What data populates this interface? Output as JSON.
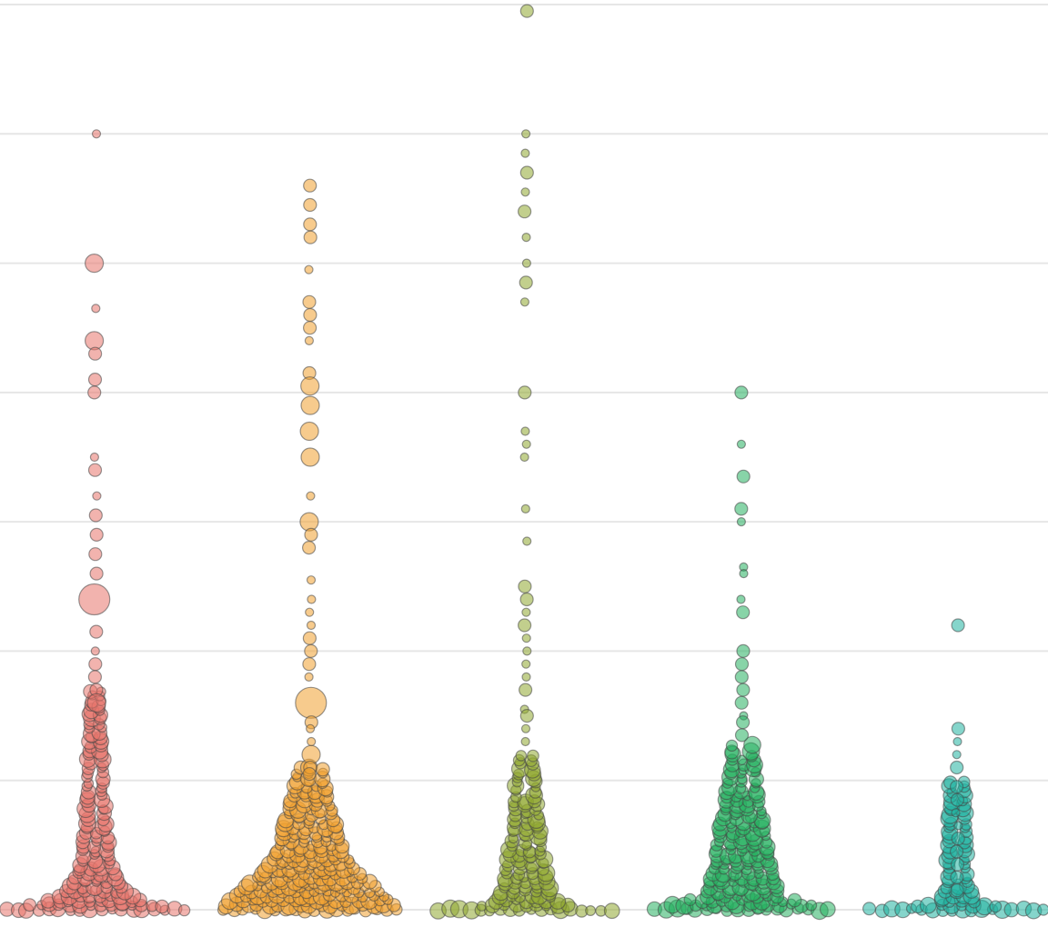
{
  "chart_data": {
    "type": "scatter",
    "subtype": "beeswarm",
    "title": "",
    "xlabel": "",
    "ylabel": "",
    "ylim": [
      0,
      7
    ],
    "grid": true,
    "gridlines": [
      0,
      1,
      2,
      3,
      4,
      5,
      6,
      7
    ],
    "legend": "none",
    "dot_opacity": 0.55,
    "series": [
      {
        "key": "s1",
        "color": "#e8746c",
        "outliers": [
          {
            "y": 6.0,
            "size": 1
          },
          {
            "y": 5.0,
            "size": 3
          },
          {
            "y": 4.65,
            "size": 1
          },
          {
            "y": 4.4,
            "size": 3
          },
          {
            "y": 4.3,
            "size": 2
          },
          {
            "y": 4.1,
            "size": 2
          },
          {
            "y": 4.0,
            "size": 2
          },
          {
            "y": 3.5,
            "size": 1
          },
          {
            "y": 3.4,
            "size": 2
          },
          {
            "y": 3.2,
            "size": 1
          },
          {
            "y": 3.05,
            "size": 2
          },
          {
            "y": 2.9,
            "size": 2
          },
          {
            "y": 2.75,
            "size": 2
          },
          {
            "y": 2.6,
            "size": 2
          },
          {
            "y": 2.4,
            "size": 4
          },
          {
            "y": 2.15,
            "size": 2
          },
          {
            "y": 2.0,
            "size": 1
          },
          {
            "y": 1.9,
            "size": 2
          },
          {
            "y": 1.8,
            "size": 2
          },
          {
            "y": 1.7,
            "size": 2
          },
          {
            "y": 1.6,
            "size": 3
          }
        ],
        "body": [
          {
            "y": 0.0,
            "half_width": 98
          },
          {
            "y": 0.03,
            "half_width": 75
          },
          {
            "y": 0.08,
            "half_width": 45
          },
          {
            "y": 0.18,
            "half_width": 26
          },
          {
            "y": 0.35,
            "half_width": 16
          },
          {
            "y": 0.6,
            "half_width": 11
          },
          {
            "y": 0.9,
            "half_width": 8
          },
          {
            "y": 1.3,
            "half_width": 6
          },
          {
            "y": 1.7,
            "half_width": 5
          }
        ]
      },
      {
        "key": "s2",
        "color": "#f0a030",
        "outliers": [
          {
            "y": 5.6,
            "size": 2
          },
          {
            "y": 5.45,
            "size": 2
          },
          {
            "y": 5.3,
            "size": 2
          },
          {
            "y": 5.2,
            "size": 2
          },
          {
            "y": 4.95,
            "size": 1
          },
          {
            "y": 4.7,
            "size": 2
          },
          {
            "y": 4.6,
            "size": 2
          },
          {
            "y": 4.5,
            "size": 2
          },
          {
            "y": 4.4,
            "size": 1
          },
          {
            "y": 4.15,
            "size": 2
          },
          {
            "y": 4.05,
            "size": 3
          },
          {
            "y": 3.9,
            "size": 3
          },
          {
            "y": 3.7,
            "size": 3
          },
          {
            "y": 3.5,
            "size": 3
          },
          {
            "y": 3.2,
            "size": 1
          },
          {
            "y": 3.0,
            "size": 3
          },
          {
            "y": 2.9,
            "size": 2
          },
          {
            "y": 2.8,
            "size": 2
          },
          {
            "y": 2.55,
            "size": 1
          },
          {
            "y": 2.4,
            "size": 1
          },
          {
            "y": 2.3,
            "size": 1
          },
          {
            "y": 2.2,
            "size": 1
          },
          {
            "y": 2.1,
            "size": 2
          },
          {
            "y": 2.0,
            "size": 2
          },
          {
            "y": 1.9,
            "size": 2
          },
          {
            "y": 1.8,
            "size": 1
          },
          {
            "y": 1.6,
            "size": 4
          },
          {
            "y": 1.45,
            "size": 2
          },
          {
            "y": 1.4,
            "size": 1
          },
          {
            "y": 1.3,
            "size": 1
          },
          {
            "y": 1.2,
            "size": 3
          },
          {
            "y": 1.1,
            "size": 2
          },
          {
            "y": 1.05,
            "size": 2
          }
        ],
        "body": [
          {
            "y": 0.0,
            "half_width": 95
          },
          {
            "y": 0.05,
            "half_width": 90
          },
          {
            "y": 0.15,
            "half_width": 75
          },
          {
            "y": 0.3,
            "half_width": 50
          },
          {
            "y": 0.45,
            "half_width": 35
          },
          {
            "y": 0.65,
            "half_width": 28
          },
          {
            "y": 0.9,
            "half_width": 18
          },
          {
            "y": 1.1,
            "half_width": 12
          }
        ]
      },
      {
        "key": "s3",
        "color": "#8fa830",
        "outliers": [
          {
            "y": 6.95,
            "size": 2
          },
          {
            "y": 6.0,
            "size": 1
          },
          {
            "y": 5.85,
            "size": 1
          },
          {
            "y": 5.7,
            "size": 2
          },
          {
            "y": 5.55,
            "size": 1
          },
          {
            "y": 5.4,
            "size": 2
          },
          {
            "y": 5.2,
            "size": 1
          },
          {
            "y": 5.0,
            "size": 1
          },
          {
            "y": 4.85,
            "size": 2
          },
          {
            "y": 4.7,
            "size": 1
          },
          {
            "y": 4.0,
            "size": 2
          },
          {
            "y": 3.7,
            "size": 1
          },
          {
            "y": 3.6,
            "size": 1
          },
          {
            "y": 3.5,
            "size": 1
          },
          {
            "y": 3.1,
            "size": 1
          },
          {
            "y": 2.85,
            "size": 1
          },
          {
            "y": 2.5,
            "size": 2
          },
          {
            "y": 2.4,
            "size": 2
          },
          {
            "y": 2.3,
            "size": 1
          },
          {
            "y": 2.2,
            "size": 2
          },
          {
            "y": 2.1,
            "size": 1
          },
          {
            "y": 2.0,
            "size": 1
          },
          {
            "y": 1.9,
            "size": 1
          },
          {
            "y": 1.8,
            "size": 1
          },
          {
            "y": 1.7,
            "size": 2
          },
          {
            "y": 1.55,
            "size": 1
          },
          {
            "y": 1.5,
            "size": 2
          },
          {
            "y": 1.4,
            "size": 1
          },
          {
            "y": 1.3,
            "size": 1
          }
        ],
        "body": [
          {
            "y": 0.0,
            "half_width": 95
          },
          {
            "y": 0.04,
            "half_width": 40
          },
          {
            "y": 0.1,
            "half_width": 28
          },
          {
            "y": 0.25,
            "half_width": 22
          },
          {
            "y": 0.45,
            "half_width": 17
          },
          {
            "y": 0.7,
            "half_width": 13
          },
          {
            "y": 1.0,
            "half_width": 9
          },
          {
            "y": 1.2,
            "half_width": 7
          }
        ]
      },
      {
        "key": "s4",
        "color": "#27b060",
        "outliers": [
          {
            "y": 4.0,
            "size": 2
          },
          {
            "y": 3.6,
            "size": 1
          },
          {
            "y": 3.35,
            "size": 2
          },
          {
            "y": 3.1,
            "size": 2
          },
          {
            "y": 3.0,
            "size": 1
          },
          {
            "y": 2.65,
            "size": 1
          },
          {
            "y": 2.6,
            "size": 1
          },
          {
            "y": 2.4,
            "size": 1
          },
          {
            "y": 2.3,
            "size": 2
          },
          {
            "y": 2.0,
            "size": 2
          },
          {
            "y": 1.9,
            "size": 2
          },
          {
            "y": 1.8,
            "size": 2
          },
          {
            "y": 1.7,
            "size": 2
          },
          {
            "y": 1.6,
            "size": 2
          },
          {
            "y": 1.5,
            "size": 1
          },
          {
            "y": 1.45,
            "size": 2
          },
          {
            "y": 1.35,
            "size": 2
          }
        ],
        "body": [
          {
            "y": 0.0,
            "half_width": 95
          },
          {
            "y": 0.1,
            "half_width": 40
          },
          {
            "y": 0.3,
            "half_width": 32
          },
          {
            "y": 0.5,
            "half_width": 26
          },
          {
            "y": 0.7,
            "half_width": 22
          },
          {
            "y": 0.9,
            "half_width": 16
          },
          {
            "y": 1.1,
            "half_width": 12
          },
          {
            "y": 1.3,
            "half_width": 9
          }
        ]
      },
      {
        "key": "s5",
        "color": "#20b2a0",
        "outliers": [
          {
            "y": 2.2,
            "size": 2
          },
          {
            "y": 1.4,
            "size": 2
          },
          {
            "y": 1.3,
            "size": 1
          },
          {
            "y": 1.2,
            "size": 1
          },
          {
            "y": 1.1,
            "size": 2
          },
          {
            "y": 0.95,
            "size": 2
          },
          {
            "y": 0.85,
            "size": 2
          },
          {
            "y": 0.75,
            "size": 1
          },
          {
            "y": 0.65,
            "size": 1
          },
          {
            "y": 0.55,
            "size": 2
          },
          {
            "y": 0.45,
            "size": 2
          },
          {
            "y": 0.35,
            "size": 2
          },
          {
            "y": 0.25,
            "size": 2
          },
          {
            "y": 0.15,
            "size": 2
          }
        ],
        "body": [
          {
            "y": 0.0,
            "half_width": 95
          },
          {
            "y": 0.05,
            "half_width": 20
          },
          {
            "y": 0.2,
            "half_width": 11
          },
          {
            "y": 0.4,
            "half_width": 9
          },
          {
            "y": 0.7,
            "half_width": 8
          },
          {
            "y": 1.0,
            "half_width": 7
          }
        ]
      }
    ]
  }
}
